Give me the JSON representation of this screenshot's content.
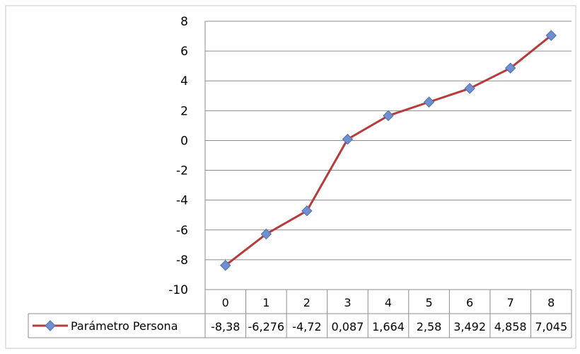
{
  "chart_data": {
    "type": "line",
    "title": "",
    "xlabel": "",
    "ylabel": "",
    "categories": [
      "0",
      "1",
      "2",
      "3",
      "4",
      "5",
      "6",
      "7",
      "8"
    ],
    "series": [
      {
        "name": "Parámetro Persona",
        "values": [
          -8.38,
          -6.276,
          -4.72,
          0.087,
          1.664,
          2.58,
          3.492,
          4.858,
          7.045
        ],
        "value_labels": [
          "-8,38",
          "-6,276",
          "-4,72",
          "0,087",
          "1,664",
          "2,58",
          "3,492",
          "4,858",
          "7,045"
        ],
        "line_color": "#b83b3b",
        "marker_color": "#6f8fd0",
        "marker": "diamond"
      }
    ],
    "ylim": [
      -10,
      8
    ],
    "yticks": [
      8,
      6,
      4,
      2,
      0,
      -2,
      -4,
      -6,
      -8,
      -10
    ],
    "grid": true,
    "legend": "data-table"
  }
}
